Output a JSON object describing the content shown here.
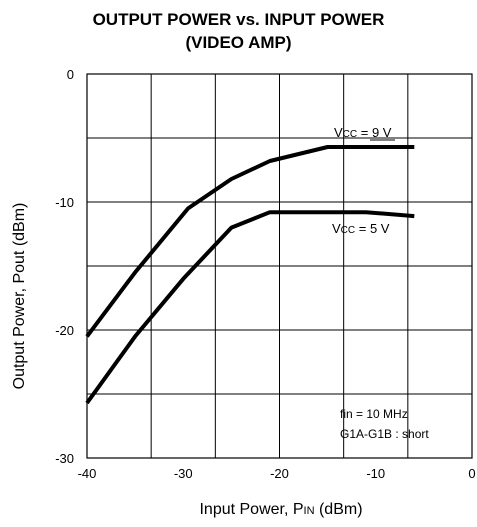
{
  "chart_data": {
    "type": "line",
    "title_line1": "OUTPUT POWER vs. INPUT POWER",
    "title_line2": "(VIDEO AMP)",
    "xlabel": {
      "main": "Input Power, P",
      "sub": "IN",
      "unit": " (dBm)"
    },
    "ylabel": "Output Power, Pout (dBm)",
    "xlim": [
      -40,
      0
    ],
    "ylim": [
      -30,
      0
    ],
    "xticks": [
      -40,
      -30,
      -20,
      -10,
      0
    ],
    "yticks": [
      -30,
      -20,
      -10,
      0
    ],
    "xtick_labels": [
      "-40",
      "-30",
      "-20",
      "-10",
      "0"
    ],
    "ytick_labels": [
      "-30",
      "-20",
      "-10",
      "0"
    ],
    "grid": true,
    "series": [
      {
        "name": "VCC = 9 V",
        "label": {
          "prefix": "V",
          "sub": "CC",
          "rest": " = 9 V"
        },
        "x": [
          -40,
          -35,
          -29.5,
          -25,
          -21,
          -15,
          -6
        ],
        "y": [
          -20.5,
          -15.5,
          -10.5,
          -8.2,
          -6.8,
          -5.7,
          -5.7
        ]
      },
      {
        "name": "VCC = 5 V",
        "label": {
          "prefix": "V",
          "sub": "CC",
          "rest": " = 5 V"
        },
        "x": [
          -40,
          -35,
          -30,
          -25,
          -21,
          -15,
          -11,
          -6
        ],
        "y": [
          -25.7,
          -20.5,
          -16.0,
          -12.0,
          -10.8,
          -10.8,
          -10.8,
          -11.1
        ]
      }
    ],
    "annotations": [
      "fin = 10 MHz",
      "G1A-G1B : short"
    ]
  }
}
